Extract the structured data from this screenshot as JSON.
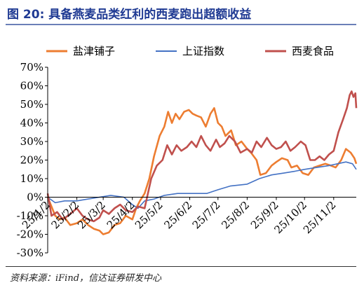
{
  "header": {
    "title": "图 20:  具备燕麦品类红利的西麦跑出超额收益"
  },
  "footer": {
    "source": "资料来源：iFind，信达证券研发中心"
  },
  "chart_data": {
    "type": "line",
    "title": "",
    "xlabel": "",
    "ylabel": "",
    "ylim": [
      -30,
      70
    ],
    "y_unit": "%",
    "y_ticks": [
      -30,
      -20,
      -10,
      0,
      10,
      20,
      30,
      40,
      50,
      60,
      70
    ],
    "y_tick_labels": [
      "-30%",
      "-20%",
      "-10%",
      "0%",
      "10%",
      "20%",
      "30%",
      "40%",
      "50%",
      "60%",
      "70%"
    ],
    "x_range": [
      "2025-01-02",
      "2025-11-26"
    ],
    "x_ticks": [
      "2025-01-02",
      "2025-02-02",
      "2025-03-02",
      "2025-04-02",
      "2025-05-02",
      "2025-06-02",
      "2025-07-02",
      "2025-08-02",
      "2025-09-02",
      "2025-10-02",
      "2025-11-02"
    ],
    "x_tick_labels": [
      "25/1/2",
      "25/2/2",
      "25/3/2",
      "25/4/2",
      "25/5/2",
      "25/6/2",
      "25/7/2",
      "25/8/2",
      "25/9/2",
      "25/10/2",
      "25/11/2"
    ],
    "grid": false,
    "legend_position": "top",
    "series": [
      {
        "name": "盐津铺子",
        "color": "#ed7d31",
        "points": [
          [
            "2025-01-02",
            0
          ],
          [
            "2025-01-06",
            -5
          ],
          [
            "2025-01-10",
            -10
          ],
          [
            "2025-01-15",
            -12
          ],
          [
            "2025-01-20",
            -11
          ],
          [
            "2025-01-26",
            -15
          ],
          [
            "2025-02-02",
            -14
          ],
          [
            "2025-02-08",
            -12
          ],
          [
            "2025-02-14",
            -15
          ],
          [
            "2025-02-20",
            -17
          ],
          [
            "2025-02-26",
            -18
          ],
          [
            "2025-03-02",
            -20
          ],
          [
            "2025-03-08",
            -19
          ],
          [
            "2025-03-14",
            -15
          ],
          [
            "2025-03-20",
            -14
          ],
          [
            "2025-03-26",
            -10
          ],
          [
            "2025-04-02",
            -12
          ],
          [
            "2025-04-06",
            -6
          ],
          [
            "2025-04-10",
            -2
          ],
          [
            "2025-04-15",
            2
          ],
          [
            "2025-04-20",
            10
          ],
          [
            "2025-04-25",
            22
          ],
          [
            "2025-05-01",
            33
          ],
          [
            "2025-05-06",
            38
          ],
          [
            "2025-05-10",
            46
          ],
          [
            "2025-05-14",
            40
          ],
          [
            "2025-05-18",
            45
          ],
          [
            "2025-05-22",
            42
          ],
          [
            "2025-05-27",
            46
          ],
          [
            "2025-06-01",
            47
          ],
          [
            "2025-06-05",
            45
          ],
          [
            "2025-06-09",
            44
          ],
          [
            "2025-06-14",
            43
          ],
          [
            "2025-06-19",
            38
          ],
          [
            "2025-06-24",
            45
          ],
          [
            "2025-06-28",
            48
          ],
          [
            "2025-07-02",
            40
          ],
          [
            "2025-07-06",
            38
          ],
          [
            "2025-07-10",
            33
          ],
          [
            "2025-07-16",
            36
          ],
          [
            "2025-07-21",
            28
          ],
          [
            "2025-07-27",
            30
          ],
          [
            "2025-08-02",
            26
          ],
          [
            "2025-08-06",
            24
          ],
          [
            "2025-08-12",
            20
          ],
          [
            "2025-08-16",
            12
          ],
          [
            "2025-08-22",
            13
          ],
          [
            "2025-08-28",
            17
          ],
          [
            "2025-09-02",
            19
          ],
          [
            "2025-09-08",
            21
          ],
          [
            "2025-09-14",
            20
          ],
          [
            "2025-09-18",
            16
          ],
          [
            "2025-09-24",
            17
          ],
          [
            "2025-09-30",
            13
          ],
          [
            "2025-10-06",
            12
          ],
          [
            "2025-10-12",
            16
          ],
          [
            "2025-10-18",
            17
          ],
          [
            "2025-10-24",
            18
          ],
          [
            "2025-10-30",
            17
          ],
          [
            "2025-11-04",
            16
          ],
          [
            "2025-11-10",
            20
          ],
          [
            "2025-11-15",
            26
          ],
          [
            "2025-11-20",
            24
          ],
          [
            "2025-11-24",
            21
          ],
          [
            "2025-11-26",
            18
          ]
        ]
      },
      {
        "name": "上证指数",
        "color": "#4472c4",
        "points": [
          [
            "2025-01-02",
            0
          ],
          [
            "2025-01-10",
            -3
          ],
          [
            "2025-01-20",
            -2
          ],
          [
            "2025-02-02",
            -2
          ],
          [
            "2025-02-14",
            -1
          ],
          [
            "2025-02-26",
            0
          ],
          [
            "2025-03-10",
            1
          ],
          [
            "2025-03-24",
            0
          ],
          [
            "2025-04-02",
            -4
          ],
          [
            "2025-04-08",
            -6
          ],
          [
            "2025-04-15",
            -2
          ],
          [
            "2025-04-25",
            -1
          ],
          [
            "2025-05-06",
            1
          ],
          [
            "2025-05-20",
            2
          ],
          [
            "2025-06-05",
            2
          ],
          [
            "2025-06-20",
            2
          ],
          [
            "2025-07-02",
            4
          ],
          [
            "2025-07-15",
            6
          ],
          [
            "2025-08-02",
            7
          ],
          [
            "2025-08-15",
            10
          ],
          [
            "2025-08-28",
            12
          ],
          [
            "2025-09-10",
            13
          ],
          [
            "2025-09-22",
            14
          ],
          [
            "2025-10-02",
            15
          ],
          [
            "2025-10-15",
            16
          ],
          [
            "2025-10-28",
            17
          ],
          [
            "2025-11-06",
            18
          ],
          [
            "2025-11-15",
            19
          ],
          [
            "2025-11-22",
            18
          ],
          [
            "2025-11-26",
            15
          ]
        ]
      },
      {
        "name": "西麦食品",
        "color": "#c0504d",
        "points": [
          [
            "2025-01-02",
            2
          ],
          [
            "2025-01-06",
            -10
          ],
          [
            "2025-01-12",
            -8
          ],
          [
            "2025-01-18",
            -12
          ],
          [
            "2025-01-26",
            -9
          ],
          [
            "2025-02-02",
            -6
          ],
          [
            "2025-02-08",
            -10
          ],
          [
            "2025-02-14",
            -12
          ],
          [
            "2025-02-20",
            -13
          ],
          [
            "2025-02-26",
            -11
          ],
          [
            "2025-03-02",
            -7
          ],
          [
            "2025-03-08",
            -9
          ],
          [
            "2025-03-14",
            -6
          ],
          [
            "2025-03-20",
            -4
          ],
          [
            "2025-03-26",
            -7
          ],
          [
            "2025-04-02",
            -8
          ],
          [
            "2025-04-08",
            -5
          ],
          [
            "2025-04-15",
            -6
          ],
          [
            "2025-04-22",
            10
          ],
          [
            "2025-04-28",
            17
          ],
          [
            "2025-05-04",
            20
          ],
          [
            "2025-05-09",
            28
          ],
          [
            "2025-05-14",
            23
          ],
          [
            "2025-05-19",
            28
          ],
          [
            "2025-05-24",
            25
          ],
          [
            "2025-05-30",
            27
          ],
          [
            "2025-06-04",
            30
          ],
          [
            "2025-06-09",
            27
          ],
          [
            "2025-06-14",
            33
          ],
          [
            "2025-06-19",
            28
          ],
          [
            "2025-06-24",
            25
          ],
          [
            "2025-06-30",
            31
          ],
          [
            "2025-07-04",
            27
          ],
          [
            "2025-07-09",
            29
          ],
          [
            "2025-07-14",
            33
          ],
          [
            "2025-07-20",
            30
          ],
          [
            "2025-07-26",
            24
          ],
          [
            "2025-08-02",
            26
          ],
          [
            "2025-08-07",
            24
          ],
          [
            "2025-08-12",
            30
          ],
          [
            "2025-08-17",
            27
          ],
          [
            "2025-08-23",
            32
          ],
          [
            "2025-08-28",
            28
          ],
          [
            "2025-09-02",
            26
          ],
          [
            "2025-09-07",
            27
          ],
          [
            "2025-09-12",
            30
          ],
          [
            "2025-09-17",
            25
          ],
          [
            "2025-09-22",
            27
          ],
          [
            "2025-09-28",
            30
          ],
          [
            "2025-10-03",
            28
          ],
          [
            "2025-10-08",
            20
          ],
          [
            "2025-10-13",
            20
          ],
          [
            "2025-10-18",
            22
          ],
          [
            "2025-10-23",
            20
          ],
          [
            "2025-10-28",
            23
          ],
          [
            "2025-11-02",
            25
          ],
          [
            "2025-11-07",
            35
          ],
          [
            "2025-11-12",
            42
          ],
          [
            "2025-11-16",
            48
          ],
          [
            "2025-11-19",
            55
          ],
          [
            "2025-11-21",
            57
          ],
          [
            "2025-11-23",
            54
          ],
          [
            "2025-11-25",
            56
          ],
          [
            "2025-11-26",
            48
          ]
        ]
      }
    ]
  }
}
